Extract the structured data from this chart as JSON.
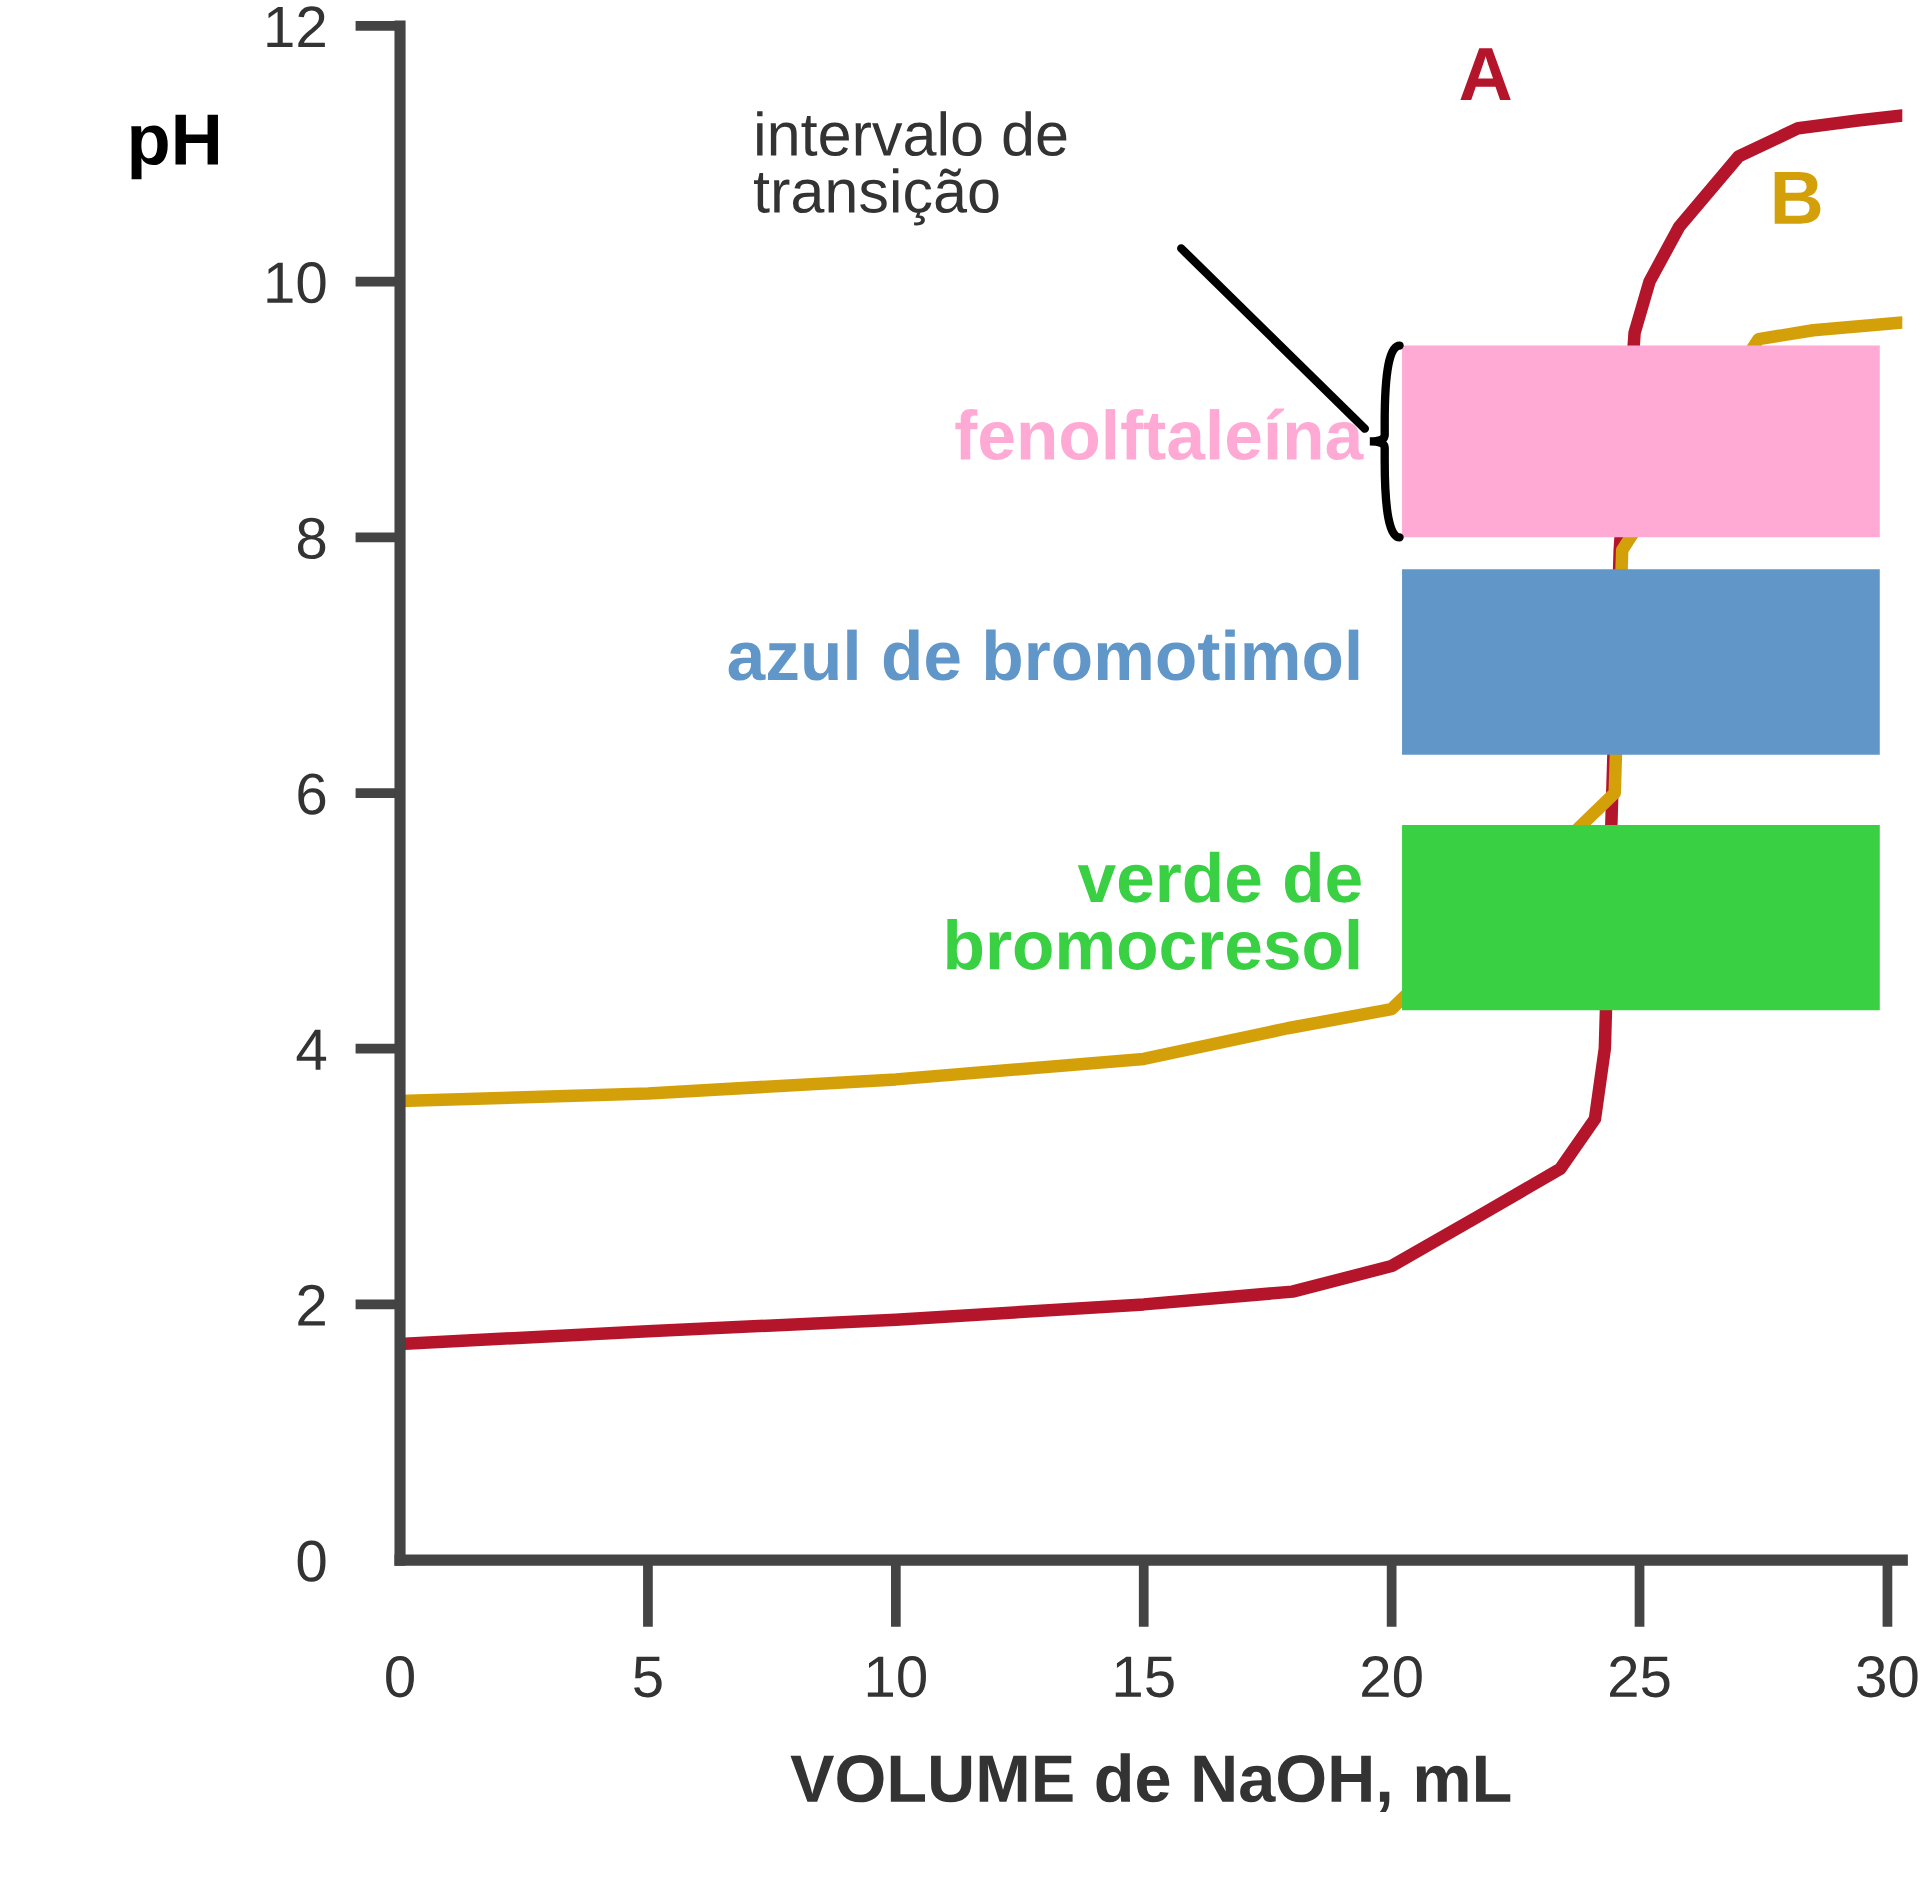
{
  "chart_data": {
    "type": "line",
    "xlabel": "VOLUME de NaOH, mL",
    "ylabel": "pH",
    "xlim": [
      0,
      30.3
    ],
    "ylim": [
      0,
      12
    ],
    "xticks": [
      0,
      5,
      10,
      15,
      20,
      25,
      30
    ],
    "yticks": [
      0,
      2,
      4,
      6,
      8,
      10,
      12
    ],
    "grid": false,
    "legend": false,
    "marker": "none",
    "line_style": "solid",
    "series": [
      {
        "name": "A",
        "color": "#b5152b",
        "x": [
          0,
          5,
          10,
          15,
          18,
          20,
          21.8,
          23.4,
          24.1,
          24.3,
          24.45,
          24.6,
          24.9,
          25.2,
          25.8,
          27,
          28.2,
          29.4,
          30.3
        ],
        "values": [
          1.69,
          1.79,
          1.88,
          2.0,
          2.1,
          2.3,
          2.7,
          3.06,
          3.45,
          4.0,
          6.0,
          7.9,
          9.6,
          10.0,
          10.43,
          10.98,
          11.2,
          11.26,
          11.3
        ]
      },
      {
        "name": "B",
        "color": "#d4a00a",
        "x": [
          0,
          5,
          10,
          15,
          17.9,
          20,
          24.5,
          24.65,
          27.4,
          28.5,
          30.3
        ],
        "values": [
          3.59,
          3.65,
          3.76,
          3.92,
          4.16,
          4.31,
          6.0,
          7.9,
          9.55,
          9.62,
          9.68
        ]
      }
    ],
    "bands": [
      {
        "axis": "y",
        "from": 8.0,
        "to": 9.5,
        "label": "fenolftaleína",
        "color": "#ffaad4"
      },
      {
        "axis": "y",
        "from": 6.3,
        "to": 7.75,
        "label": "azul de bromotimol",
        "color": "#6096c8"
      },
      {
        "axis": "y",
        "from": 4.3,
        "to": 5.75,
        "label": "verde de\nbromocresol",
        "color": "#3ad043"
      }
    ],
    "annotations": [
      "intervalo de\ntransição"
    ]
  }
}
